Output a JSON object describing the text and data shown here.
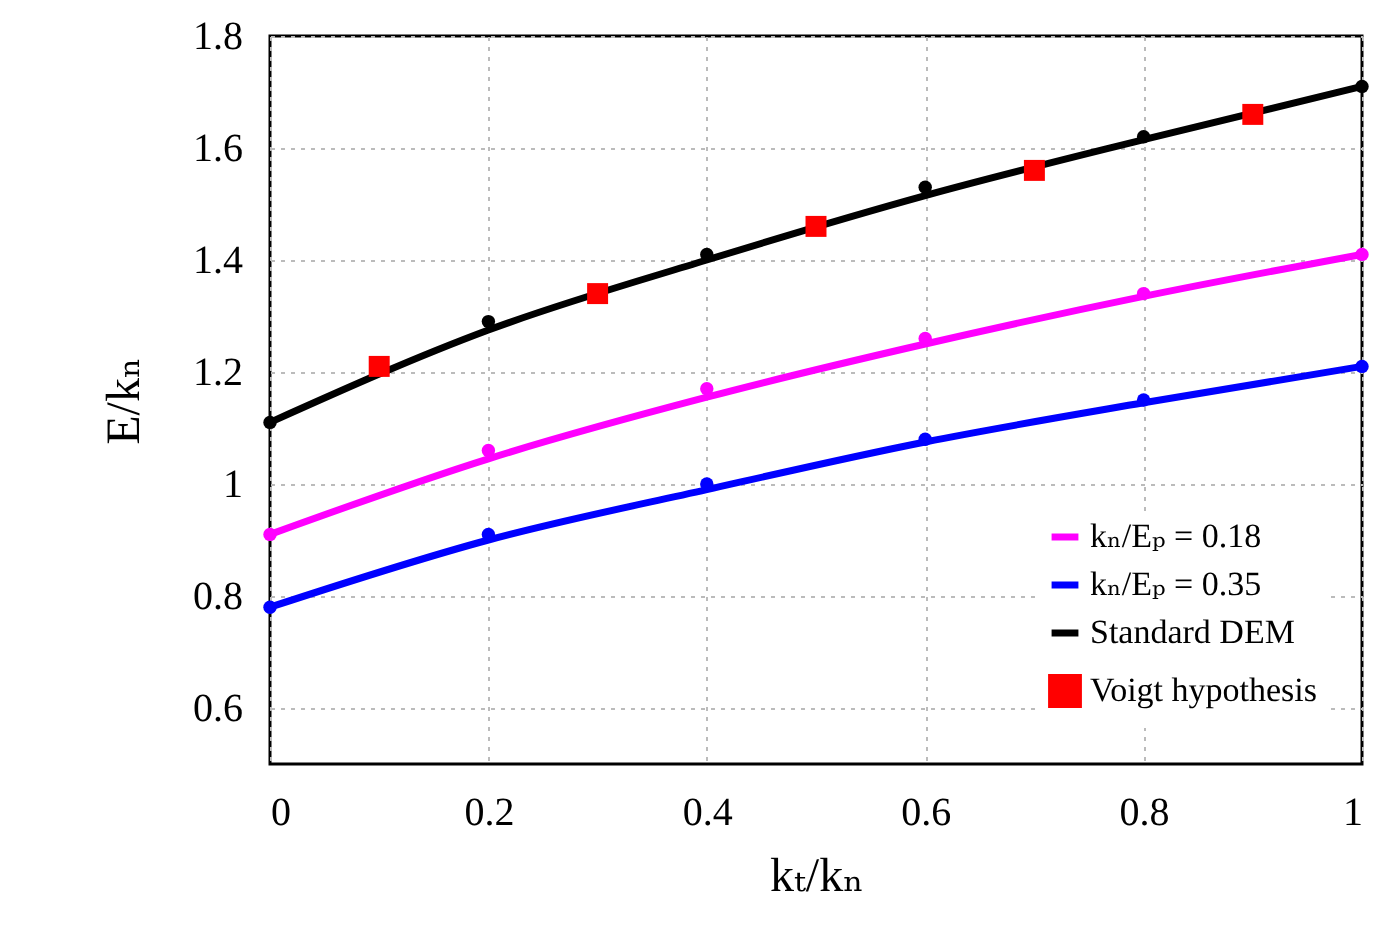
{
  "chart_data": {
    "type": "line",
    "xlabel": "kₜ/kₙ",
    "ylabel": "E/kₙ",
    "xlim": [
      0,
      1
    ],
    "xticks": [
      0,
      0.2,
      0.4,
      0.6,
      0.8,
      1
    ],
    "ylim": [
      0.5,
      1.8
    ],
    "yticks": [
      0.6,
      0.8,
      1,
      1.2,
      1.4,
      1.6,
      1.8
    ],
    "grid": true,
    "legend": "bottom right",
    "series": [
      {
        "name": "kₙ/Eₚ = 0.18",
        "color": "#ff00ff",
        "marker": "none",
        "x": [
          0,
          0.2,
          0.4,
          0.6,
          0.8,
          1
        ],
        "values": [
          0.91,
          1.045,
          1.155,
          1.25,
          1.335,
          1.41
        ]
      },
      {
        "name": "kₙ/Eₚ = 0.35",
        "color": "#0000ff",
        "marker": "none",
        "x": [
          0,
          0.2,
          0.4,
          0.6,
          0.8,
          1
        ],
        "values": [
          0.78,
          0.9,
          0.99,
          1.075,
          1.145,
          1.21
        ]
      },
      {
        "name": "Standard DEM",
        "color": "#000000",
        "marker": "none",
        "x": [
          0,
          0.2,
          0.4,
          0.6,
          0.8,
          1
        ],
        "values": [
          1.11,
          1.275,
          1.4,
          1.515,
          1.615,
          1.71
        ]
      },
      {
        "name": "Voigt hypothesis",
        "type": "scatter",
        "color": "#ff0000",
        "marker": "square",
        "x": [
          0.1,
          0.3,
          0.5,
          0.7,
          0.9
        ],
        "values": [
          1.21,
          1.34,
          1.46,
          1.56,
          1.66
        ]
      },
      {
        "type": "scatter",
        "color": "#ff00ff",
        "marker": "circle",
        "x": [
          0,
          0.2,
          0.4,
          0.6,
          0.8,
          1
        ],
        "values": [
          0.91,
          1.06,
          1.17,
          1.26,
          1.34,
          1.41
        ]
      },
      {
        "type": "scatter",
        "color": "#0000ff",
        "marker": "circle",
        "x": [
          0,
          0.2,
          0.4,
          0.6,
          0.8,
          1
        ],
        "values": [
          0.78,
          0.91,
          1.0,
          1.08,
          1.15,
          1.21
        ]
      },
      {
        "type": "scatter",
        "color": "#000000",
        "marker": "circle",
        "x": [
          0,
          0.2,
          0.4,
          0.6,
          0.8,
          1
        ],
        "values": [
          1.11,
          1.29,
          1.41,
          1.53,
          1.62,
          1.71
        ]
      }
    ]
  }
}
